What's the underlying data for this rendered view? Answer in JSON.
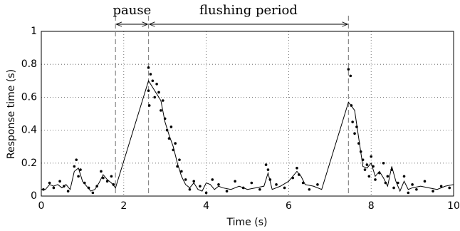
{
  "chart_data": {
    "type": "scatter-line",
    "x_label": "Time (s)",
    "y_label": "Response time (s)",
    "xlim": [
      0,
      10
    ],
    "ylim": [
      0,
      1
    ],
    "xticks": [
      0,
      2,
      4,
      6,
      8,
      10
    ],
    "yticks": [
      0,
      0.2,
      0.4,
      0.6,
      0.8,
      1
    ],
    "grid": true,
    "color": "#000000",
    "vlines": [
      1.8,
      2.6,
      7.45
    ],
    "annotations": [
      {
        "text": "pause",
        "x": [
          1.8,
          2.6
        ]
      },
      {
        "text": "flushing period",
        "x": [
          2.6,
          7.45
        ]
      }
    ],
    "line": {
      "x": [
        0,
        0.1,
        0.2,
        0.3,
        0.4,
        0.5,
        0.6,
        0.7,
        0.8,
        0.9,
        1.0,
        1.1,
        1.2,
        1.3,
        1.4,
        1.5,
        1.6,
        1.7,
        1.8,
        2.6,
        2.7,
        2.8,
        2.9,
        3.0,
        3.1,
        3.2,
        3.3,
        3.4,
        3.5,
        3.6,
        3.7,
        3.8,
        3.9,
        4.0,
        4.1,
        4.2,
        4.3,
        4.4,
        4.6,
        4.8,
        5.0,
        5.2,
        5.4,
        5.5,
        5.6,
        5.8,
        6.0,
        6.2,
        6.3,
        6.4,
        6.6,
        6.8,
        7.45,
        7.6,
        7.7,
        7.8,
        7.9,
        8.0,
        8.1,
        8.2,
        8.3,
        8.4,
        8.5,
        8.6,
        8.7,
        8.8,
        8.9,
        9.0,
        9.2,
        9.4,
        9.6,
        9.8,
        10
      ],
      "values": [
        0.04,
        0.04,
        0.07,
        0.06,
        0.07,
        0.05,
        0.07,
        0.04,
        0.15,
        0.17,
        0.09,
        0.06,
        0.03,
        0.04,
        0.08,
        0.13,
        0.1,
        0.08,
        0.05,
        0.7,
        0.66,
        0.62,
        0.58,
        0.45,
        0.37,
        0.3,
        0.2,
        0.12,
        0.07,
        0.05,
        0.08,
        0.04,
        0.03,
        0.08,
        0.07,
        0.04,
        0.06,
        0.05,
        0.04,
        0.06,
        0.04,
        0.05,
        0.06,
        0.14,
        0.04,
        0.06,
        0.09,
        0.15,
        0.12,
        0.07,
        0.06,
        0.04,
        0.57,
        0.52,
        0.35,
        0.18,
        0.17,
        0.2,
        0.12,
        0.15,
        0.11,
        0.06,
        0.18,
        0.09,
        0.03,
        0.09,
        0.04,
        0.05,
        0.06,
        0.05,
        0.04,
        0.06,
        0.07
      ]
    },
    "points": {
      "x": [
        0.05,
        0.2,
        0.3,
        0.45,
        0.55,
        0.65,
        0.8,
        0.85,
        0.9,
        0.95,
        1.05,
        1.15,
        1.25,
        1.35,
        1.45,
        1.5,
        1.6,
        1.7,
        1.75,
        2.6,
        2.6,
        2.62,
        2.65,
        2.7,
        2.75,
        2.8,
        2.85,
        2.9,
        2.95,
        3.0,
        3.05,
        3.1,
        3.15,
        3.2,
        3.25,
        3.3,
        3.35,
        3.4,
        3.5,
        3.6,
        3.7,
        3.85,
        4.0,
        4.15,
        4.3,
        4.5,
        4.7,
        4.9,
        5.1,
        5.3,
        5.45,
        5.5,
        5.55,
        5.7,
        5.9,
        6.1,
        6.2,
        6.25,
        6.35,
        6.5,
        6.7,
        7.45,
        7.5,
        7.52,
        7.55,
        7.6,
        7.65,
        7.7,
        7.75,
        7.8,
        7.85,
        7.9,
        7.95,
        8.0,
        8.05,
        8.1,
        8.2,
        8.3,
        8.35,
        8.4,
        8.5,
        8.55,
        8.65,
        8.8,
        8.9,
        9.0,
        9.1,
        9.3,
        9.5,
        9.7,
        9.9
      ],
      "values": [
        0.04,
        0.08,
        0.05,
        0.09,
        0.06,
        0.03,
        0.18,
        0.22,
        0.12,
        0.16,
        0.08,
        0.05,
        0.02,
        0.06,
        0.15,
        0.11,
        0.09,
        0.12,
        0.07,
        0.78,
        0.64,
        0.55,
        0.74,
        0.7,
        0.6,
        0.68,
        0.63,
        0.52,
        0.58,
        0.47,
        0.4,
        0.35,
        0.42,
        0.28,
        0.32,
        0.18,
        0.22,
        0.15,
        0.1,
        0.04,
        0.09,
        0.06,
        0.02,
        0.1,
        0.07,
        0.03,
        0.09,
        0.05,
        0.08,
        0.04,
        0.19,
        0.16,
        0.1,
        0.07,
        0.05,
        0.11,
        0.17,
        0.13,
        0.08,
        0.04,
        0.07,
        0.77,
        0.73,
        0.55,
        0.45,
        0.38,
        0.42,
        0.32,
        0.27,
        0.22,
        0.16,
        0.19,
        0.12,
        0.24,
        0.18,
        0.1,
        0.14,
        0.2,
        0.08,
        0.12,
        0.16,
        0.05,
        0.08,
        0.12,
        0.02,
        0.07,
        0.04,
        0.09,
        0.03,
        0.06,
        0.05
      ]
    }
  }
}
